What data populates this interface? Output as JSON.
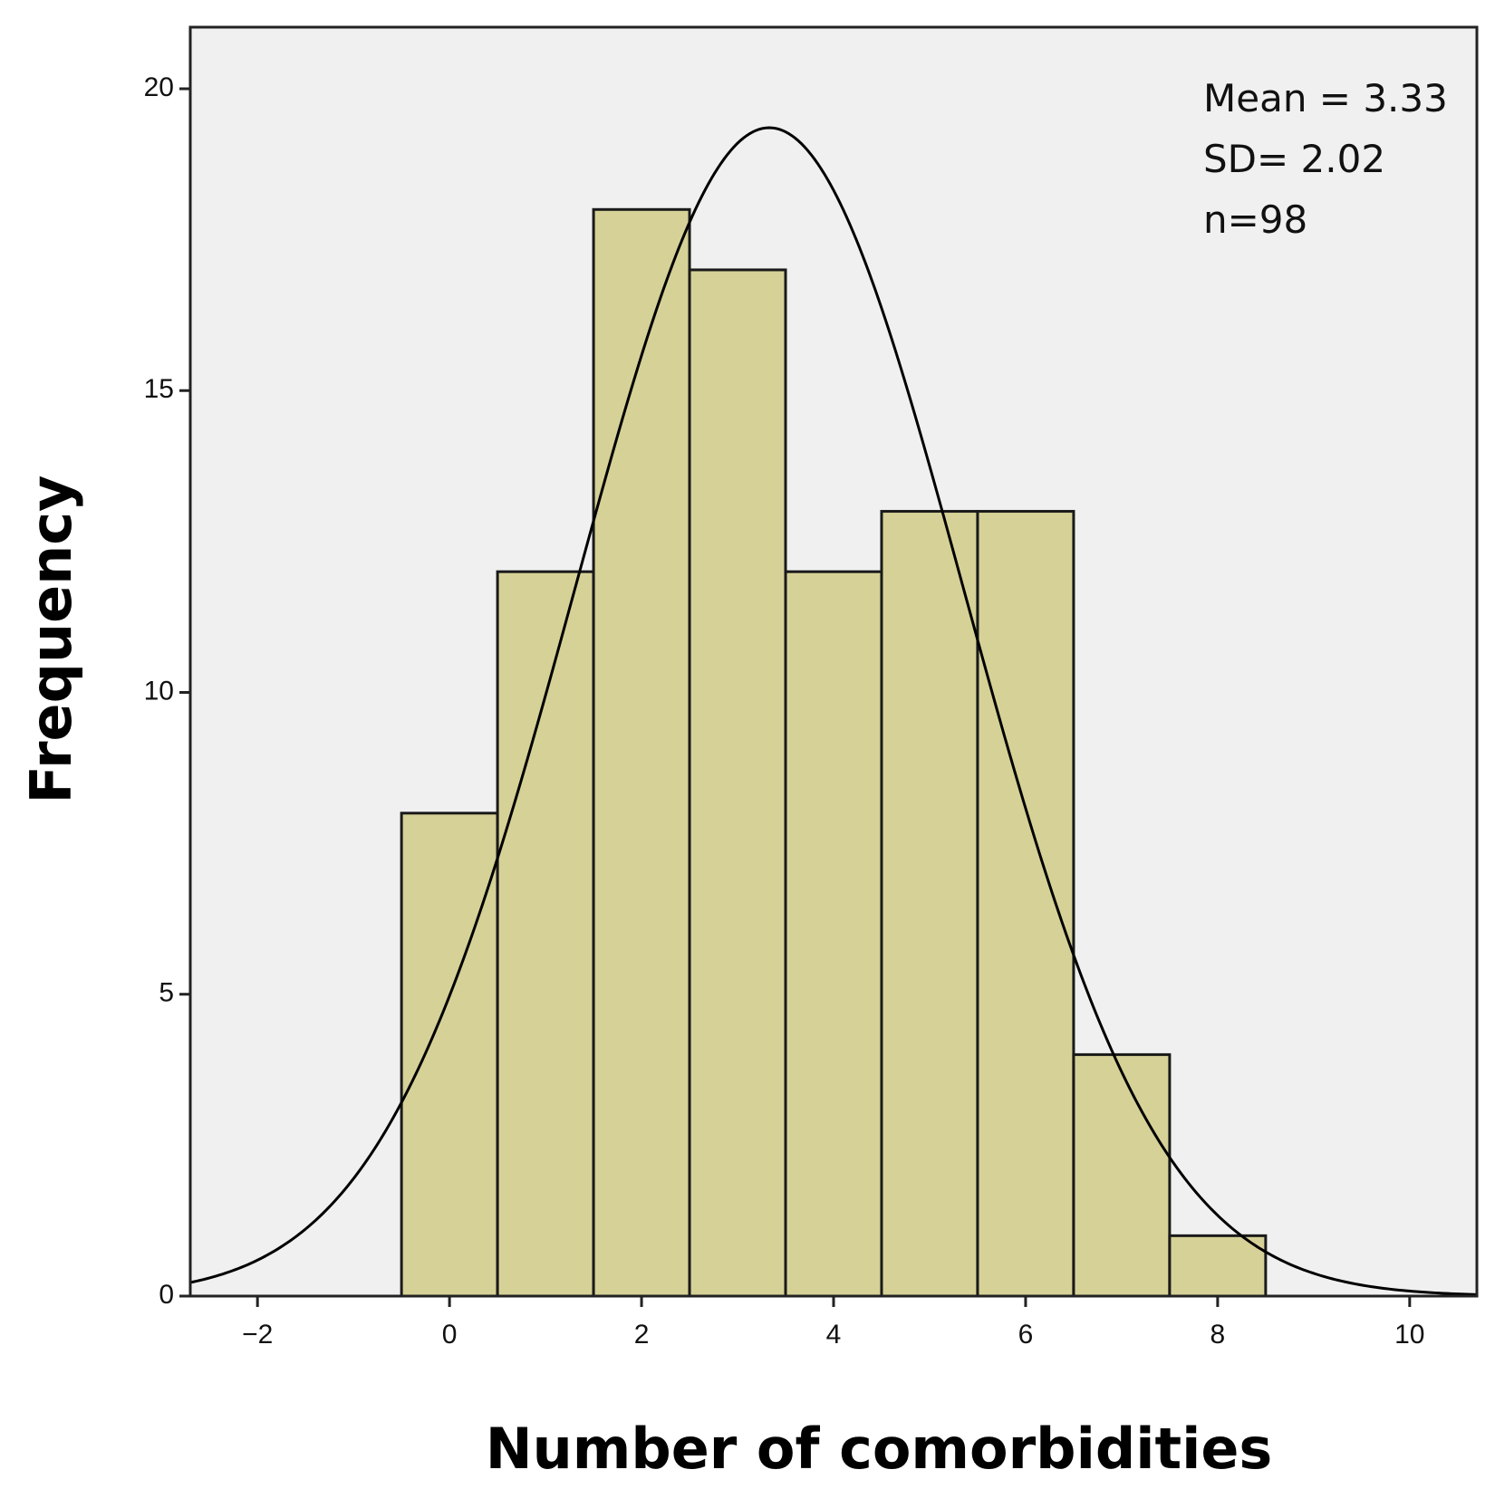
{
  "chart_data": {
    "type": "bar",
    "subtype": "histogram",
    "xlabel": "Number of comorbidities",
    "ylabel": "Frequency",
    "bins": [
      {
        "center": 0,
        "value": 8
      },
      {
        "center": 1,
        "value": 12
      },
      {
        "center": 2,
        "value": 18
      },
      {
        "center": 3,
        "value": 17
      },
      {
        "center": 4,
        "value": 12
      },
      {
        "center": 5,
        "value": 13
      },
      {
        "center": 6,
        "value": 13
      },
      {
        "center": 7,
        "value": 4
      },
      {
        "center": 8,
        "value": 1
      }
    ],
    "bin_width": 1,
    "xlim": [
      -2.7,
      10.7
    ],
    "ylim": [
      0,
      21
    ],
    "xticks": [
      -2,
      0,
      2,
      4,
      6,
      8,
      10
    ],
    "xtick_labels": [
      "−2",
      "0",
      "2",
      "4",
      "6",
      "8",
      "10"
    ],
    "yticks": [
      0,
      5,
      10,
      15,
      20
    ],
    "ytick_labels": [
      "0",
      "5",
      "10",
      "15",
      "20"
    ],
    "normal_curve": {
      "mean": 3.33,
      "sd": 2.02,
      "n": 98
    },
    "stats_lines": [
      "Mean = 3.33",
      "SD= 2.02",
      "n=98"
    ],
    "colors": {
      "plot_background": "#f0f0f0",
      "bar_fill": "#d6d197",
      "bar_edge": "#1a1a1a",
      "curve": "#000000"
    }
  }
}
